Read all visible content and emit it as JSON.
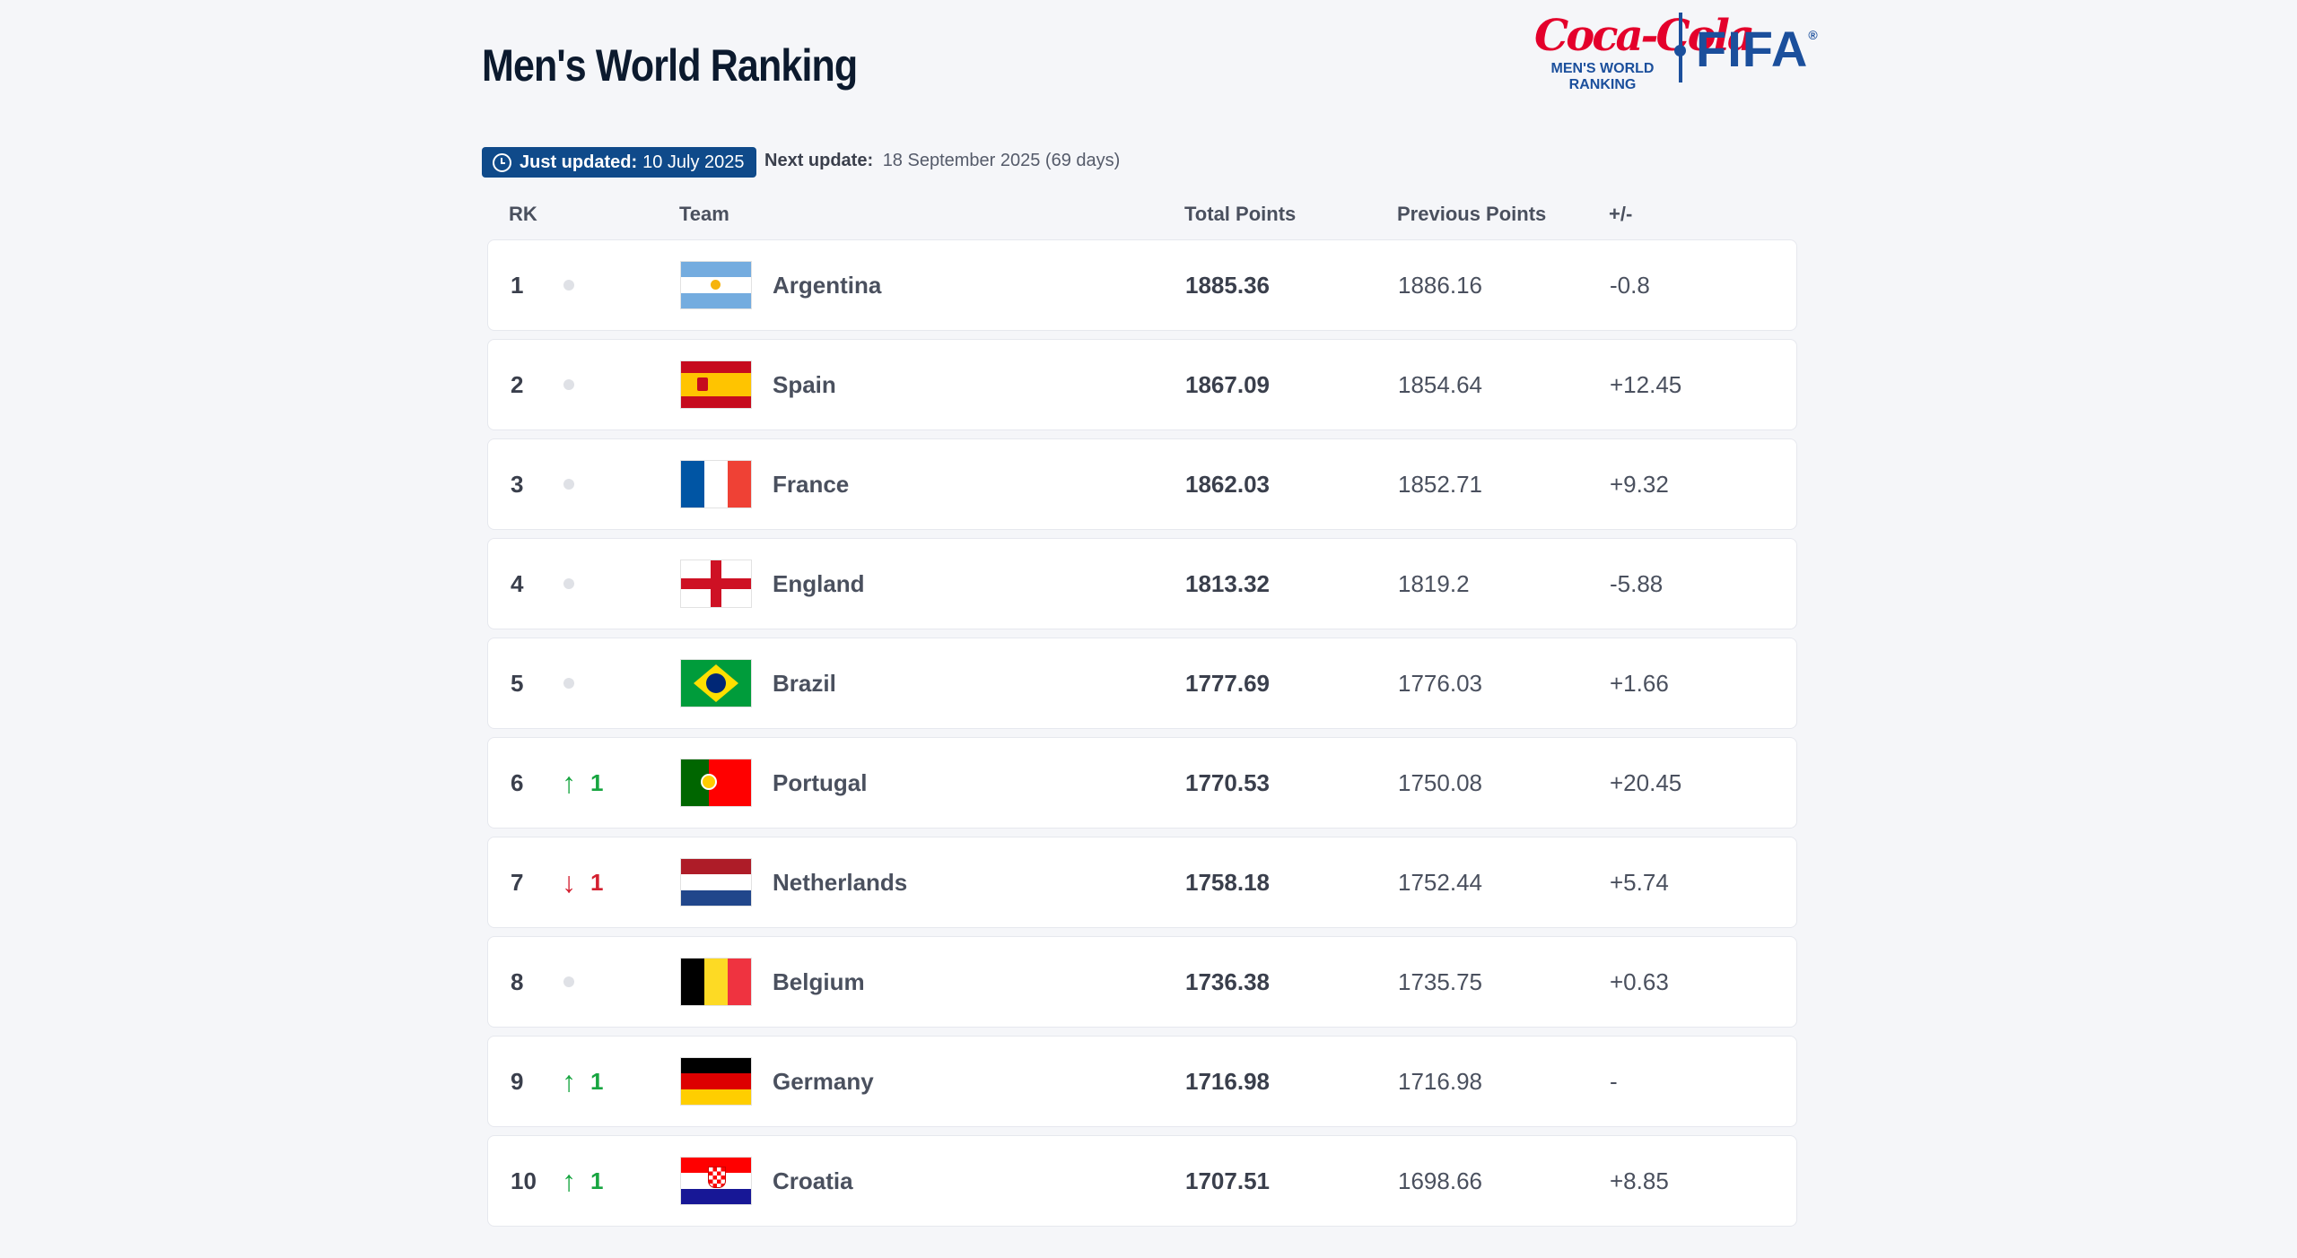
{
  "page": {
    "title": "Men's World Ranking"
  },
  "logo": {
    "sponsor": "Coca-Cola",
    "ranking_line1": "MEN'S WORLD",
    "ranking_line2": "RANKING",
    "brand": "FIFA"
  },
  "update": {
    "just_updated_label": "Just updated:",
    "just_updated_date": "10 July 2025",
    "next_update_label": "Next update:",
    "next_update_value": "18 September 2025 (69 days)"
  },
  "table": {
    "headers": {
      "rank": "RK",
      "team": "Team",
      "total": "Total Points",
      "previous": "Previous Points",
      "diff": "+/-"
    },
    "rows": [
      {
        "rank": "1",
        "movement": "none",
        "move_value": "",
        "flag_icon": "argentina-flag-icon",
        "team": "Argentina",
        "total": "1885.36",
        "previous": "1886.16",
        "diff": "-0.8"
      },
      {
        "rank": "2",
        "movement": "none",
        "move_value": "",
        "flag_icon": "spain-flag-icon",
        "team": "Spain",
        "total": "1867.09",
        "previous": "1854.64",
        "diff": "+12.45"
      },
      {
        "rank": "3",
        "movement": "none",
        "move_value": "",
        "flag_icon": "france-flag-icon",
        "team": "France",
        "total": "1862.03",
        "previous": "1852.71",
        "diff": "+9.32"
      },
      {
        "rank": "4",
        "movement": "none",
        "move_value": "",
        "flag_icon": "england-flag-icon",
        "team": "England",
        "total": "1813.32",
        "previous": "1819.2",
        "diff": "-5.88"
      },
      {
        "rank": "5",
        "movement": "none",
        "move_value": "",
        "flag_icon": "brazil-flag-icon",
        "team": "Brazil",
        "total": "1777.69",
        "previous": "1776.03",
        "diff": "+1.66"
      },
      {
        "rank": "6",
        "movement": "up",
        "move_value": "1",
        "flag_icon": "portugal-flag-icon",
        "team": "Portugal",
        "total": "1770.53",
        "previous": "1750.08",
        "diff": "+20.45"
      },
      {
        "rank": "7",
        "movement": "down",
        "move_value": "1",
        "flag_icon": "netherlands-flag-icon",
        "team": "Netherlands",
        "total": "1758.18",
        "previous": "1752.44",
        "diff": "+5.74"
      },
      {
        "rank": "8",
        "movement": "none",
        "move_value": "",
        "flag_icon": "belgium-flag-icon",
        "team": "Belgium",
        "total": "1736.38",
        "previous": "1735.75",
        "diff": "+0.63"
      },
      {
        "rank": "9",
        "movement": "up",
        "move_value": "1",
        "flag_icon": "germany-flag-icon",
        "team": "Germany",
        "total": "1716.98",
        "previous": "1716.98",
        "diff": "-"
      },
      {
        "rank": "10",
        "movement": "up",
        "move_value": "1",
        "flag_icon": "croatia-flag-icon",
        "team": "Croatia",
        "total": "1707.51",
        "previous": "1698.66",
        "diff": "+8.85"
      }
    ]
  },
  "colors": {
    "badge": "#0f4a8a",
    "up": "#17a540",
    "down": "#d32030",
    "brand": "#1b4f9c",
    "sponsor": "#e4002b"
  }
}
